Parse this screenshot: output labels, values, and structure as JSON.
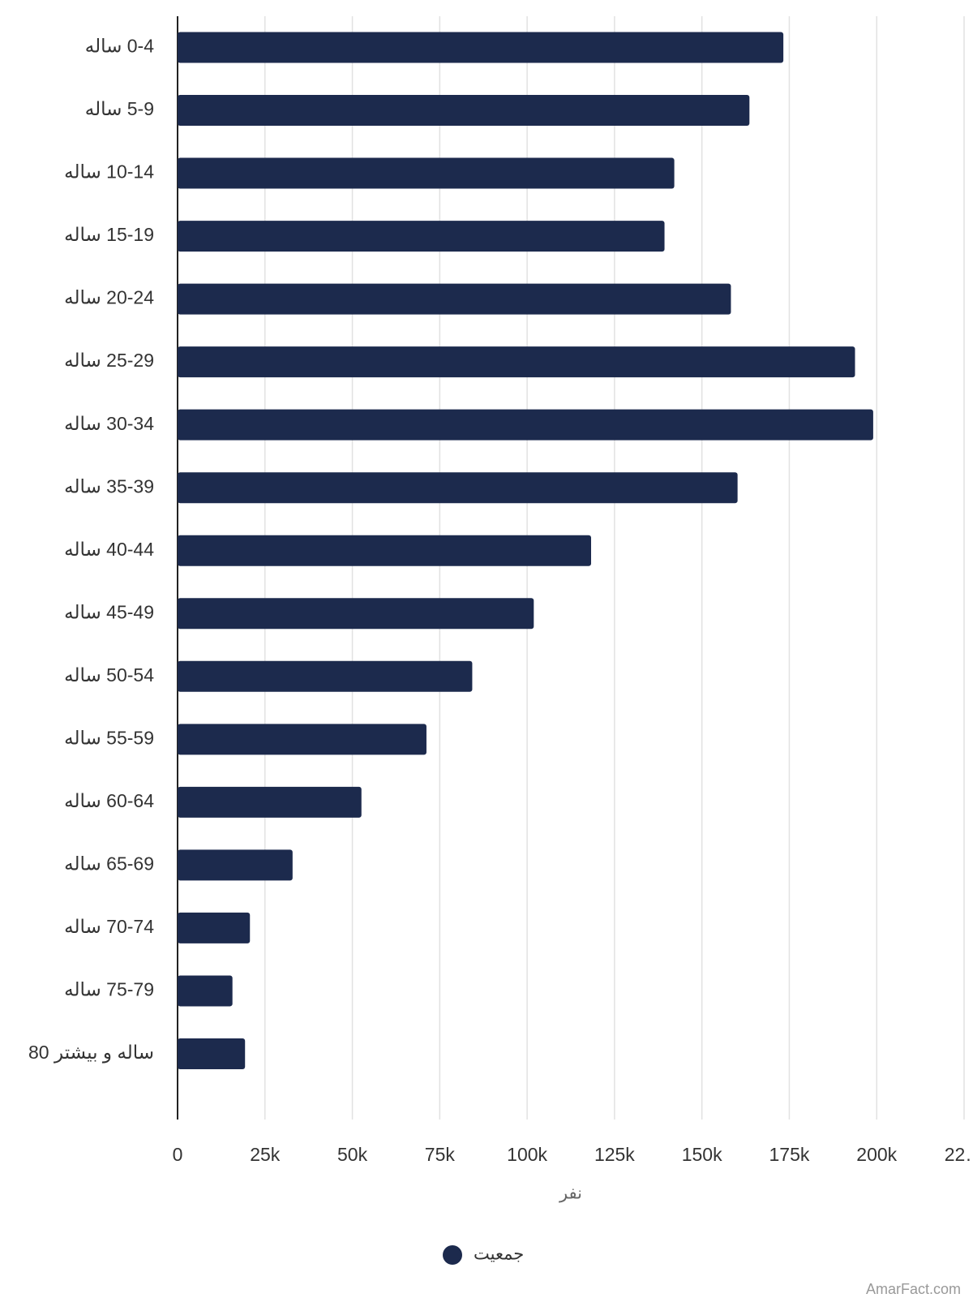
{
  "chart_data": {
    "type": "bar",
    "orientation": "horizontal",
    "categories": [
      "0-4 ساله",
      "5-9 ساله",
      "10-14 ساله",
      "15-19 ساله",
      "20-24 ساله",
      "25-29 ساله",
      "30-34 ساله",
      "35-39 ساله",
      "40-44 ساله",
      "45-49 ساله",
      "50-54 ساله",
      "55-59 ساله",
      "60-64 ساله",
      "65-69 ساله",
      "70-74 ساله",
      "75-79 ساله",
      "ساله و بیشتر 80"
    ],
    "series": [
      {
        "name": "جمعیت",
        "color": "#1c2a4d",
        "values": [
          173300,
          163600,
          142100,
          139300,
          158300,
          193800,
          199000,
          160200,
          118300,
          101900,
          84300,
          71200,
          52600,
          32900,
          20700,
          15700,
          19300
        ]
      }
    ],
    "xlim": [
      0,
      225000
    ],
    "xticks": [
      0,
      {
        "value": 25000,
        "label": "25k"
      },
      {
        "value": 50000,
        "label": "50k"
      },
      {
        "value": 75000,
        "label": "75k"
      },
      {
        "value": 100000,
        "label": "100k"
      },
      {
        "value": 125000,
        "label": "125k"
      },
      {
        "value": 150000,
        "label": "150k"
      },
      {
        "value": 175000,
        "label": "175k"
      },
      {
        "value": 200000,
        "label": "200k"
      },
      {
        "value": 225000,
        "label": "22…"
      }
    ],
    "x_label": "نفر",
    "grid": true,
    "legend": "bottom",
    "watermark": "AmarFact.com"
  }
}
